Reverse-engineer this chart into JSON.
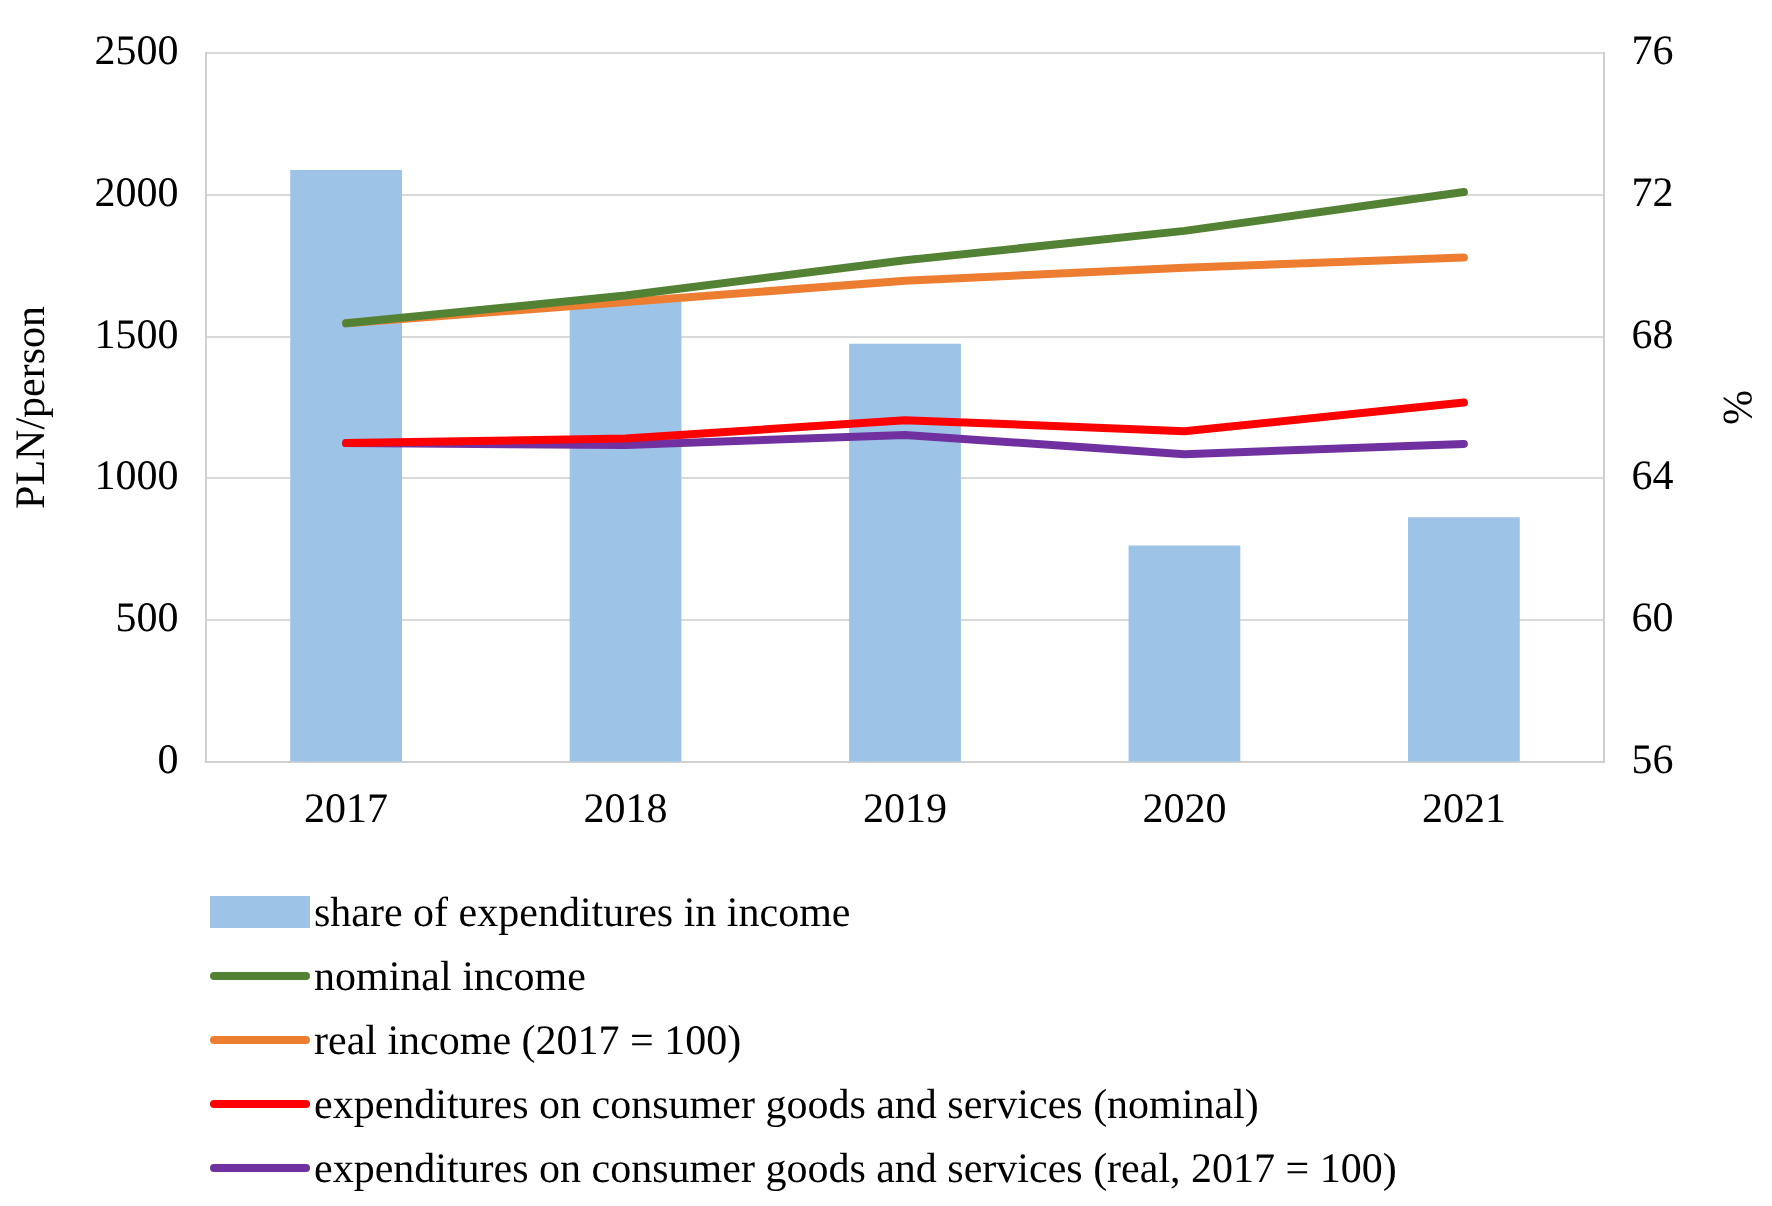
{
  "chart_data": {
    "type": "bar",
    "categories": [
      "2017",
      "2018",
      "2019",
      "2020",
      "2021"
    ],
    "series": [
      {
        "name": "share of expenditures in income",
        "axis": "y2",
        "color": "#9dc3e6",
        "values": [
          72.7,
          69.0,
          67.8,
          62.1,
          62.9
        ]
      },
      {
        "name": "nominal income",
        "type": "line",
        "axis": "y",
        "color": "#548235",
        "values": [
          1547,
          1645,
          1769,
          1873,
          2010
        ]
      },
      {
        "name": "real income (2017 = 100)",
        "type": "line",
        "axis": "y",
        "color": "#ed7d31",
        "values": [
          1547,
          1622,
          1697,
          1743,
          1779
        ]
      },
      {
        "name": "expenditures on consumer goods and services (nominal)",
        "type": "line",
        "axis": "y",
        "color": "#ff0000",
        "values": [
          1124,
          1140,
          1205,
          1166,
          1267
        ]
      },
      {
        "name": "expenditures on consumer goods and services (real, 2017 = 100)",
        "type": "line",
        "axis": "y",
        "color": "#7030a0",
        "values": [
          1124,
          1117,
          1153,
          1085,
          1121
        ]
      }
    ],
    "ylabel": "PLN/person",
    "y2label": "%",
    "ylim": [
      0,
      2500
    ],
    "yticks": [
      0,
      500,
      1000,
      1500,
      2000,
      2500
    ],
    "y2lim": [
      56,
      76
    ],
    "y2ticks": [
      56,
      60,
      64,
      68,
      72,
      76
    ],
    "grid": "y",
    "legend": "bottom",
    "marker": "none",
    "line_style": "solid"
  }
}
